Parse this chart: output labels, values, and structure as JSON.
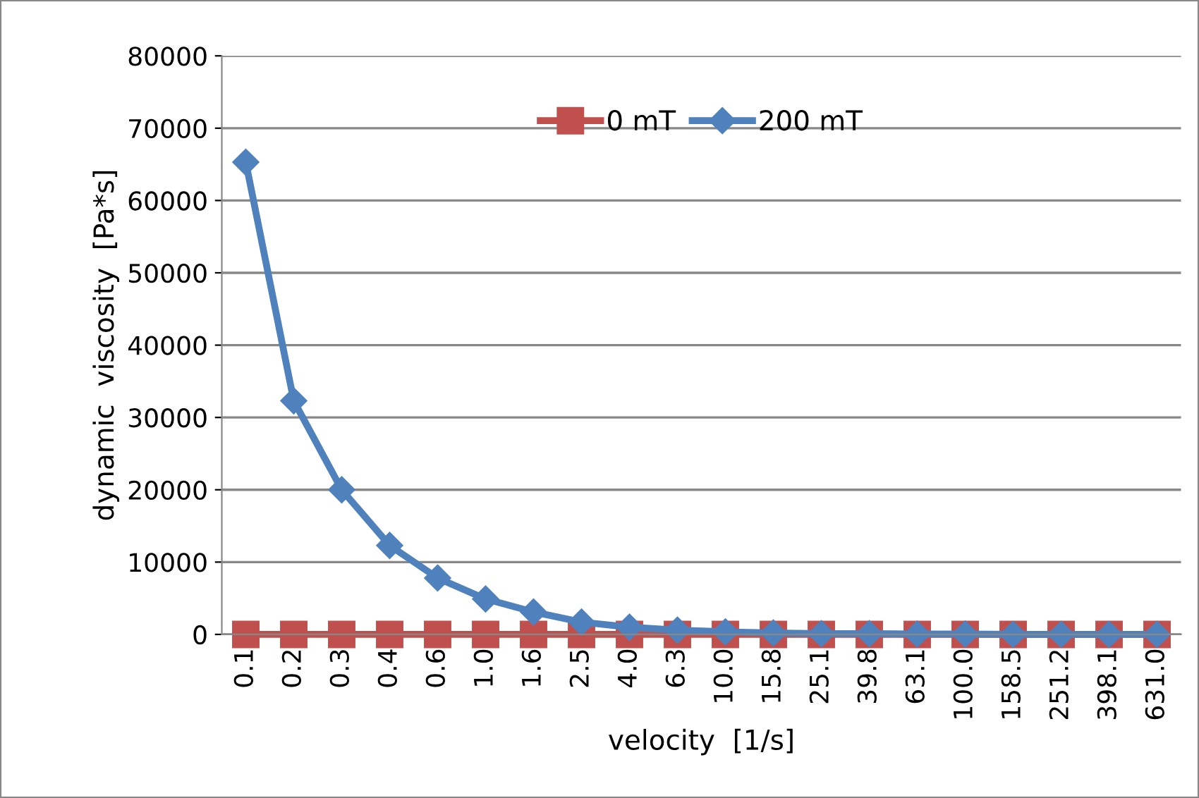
{
  "chart_data": {
    "type": "line",
    "xlabel": "velocity  [1/s]",
    "ylabel": "dynamic  viscosity  [Pa*s]",
    "categories": [
      "0.1",
      "0.2",
      "0.3",
      "0.4",
      "0.6",
      "1.0",
      "1.6",
      "2.5",
      "4.0",
      "6.3",
      "10.0",
      "15.8",
      "25.1",
      "39.8",
      "63.1",
      "100.0",
      "158.5",
      "251.2",
      "398.1",
      "631.0"
    ],
    "series": [
      {
        "name": "0 mT",
        "color": "#c0504d",
        "marker": "square",
        "values": [
          0,
          0,
          0,
          0,
          0,
          0,
          0,
          0,
          0,
          0,
          0,
          0,
          0,
          0,
          0,
          0,
          0,
          0,
          0,
          0
        ]
      },
      {
        "name": "200 mT",
        "color": "#4f81bd",
        "marker": "diamond",
        "values": [
          65300,
          32300,
          20000,
          12300,
          7800,
          4900,
          3100,
          1700,
          1000,
          600,
          350,
          200,
          100,
          100,
          50,
          50,
          0,
          0,
          0,
          0
        ]
      }
    ],
    "ylim": [
      0,
      80000
    ],
    "yticks": [
      0,
      10000,
      20000,
      30000,
      40000,
      50000,
      60000,
      70000,
      80000
    ],
    "grid": "y",
    "legend": "top",
    "line_style": "solid"
  }
}
